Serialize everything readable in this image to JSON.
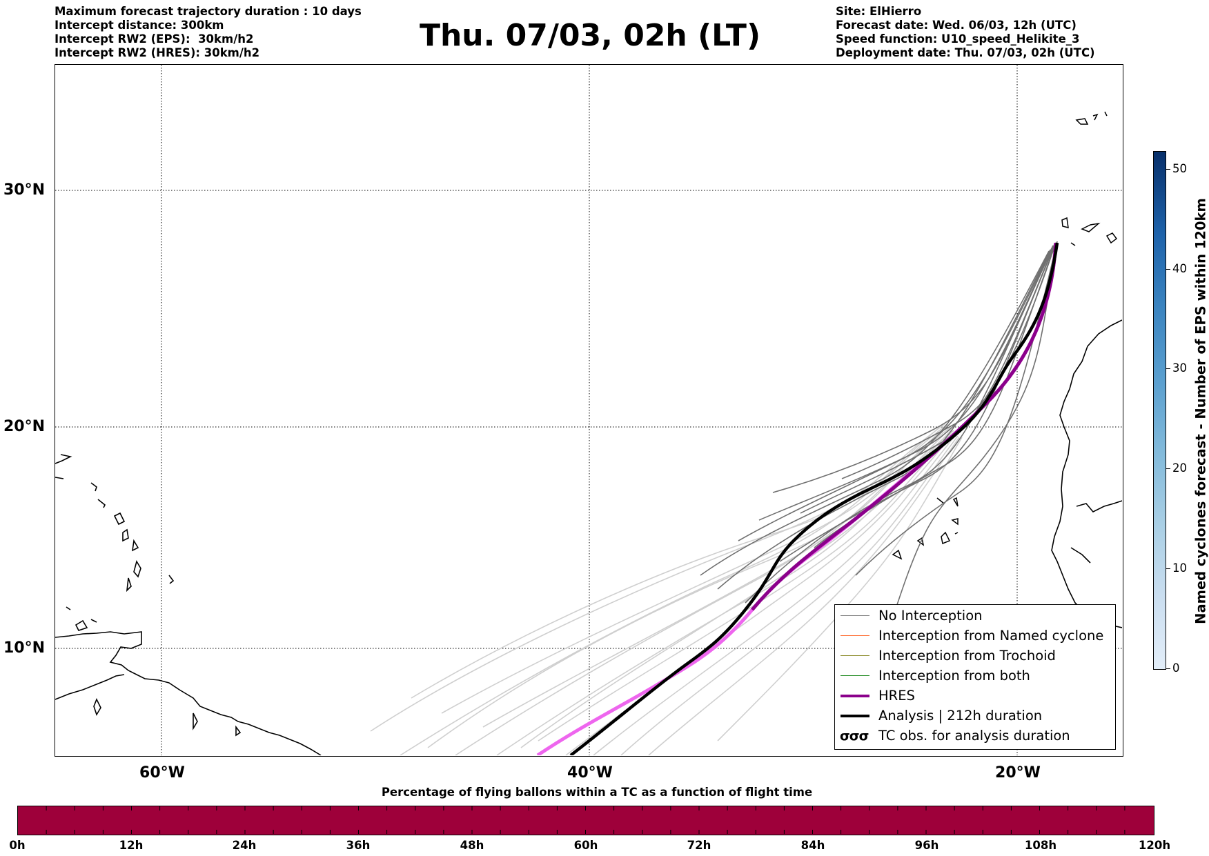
{
  "info_left": [
    "Maximum forecast trajectory duration : 10 days",
    "Intercept distance: 300km",
    "Intercept RW2 (EPS):  30km/h2",
    "Intercept RW2 (HRES): 30km/h2"
  ],
  "title": "Thu. 07/03, 02h (LT)",
  "info_right": [
    "Site: ElHierro",
    "Forecast date: Wed. 06/03, 12h (UTC)",
    "Speed function: U10_speed_Helikite_3",
    "Deployment date: Thu. 07/03, 02h (UTC)"
  ],
  "map": {
    "lat_labels": [
      "30°N",
      "20°N",
      "10°N"
    ],
    "lon_labels": [
      "60°W",
      "40°W",
      "20°W"
    ]
  },
  "legend": {
    "items": [
      {
        "label": "No Interception",
        "color": "#808080"
      },
      {
        "label": "Interception from Named cyclone",
        "color": "#ff6a2e"
      },
      {
        "label": "Interception from Trochoid",
        "color": "#8b8b2a"
      },
      {
        "label": "Interception from both",
        "color": "#228b22"
      },
      {
        "label": "HRES",
        "color": "#8b008b"
      },
      {
        "label": "Analysis | 212h duration",
        "color": "#000000"
      },
      {
        "label": "TC obs. for analysis duration",
        "symbol": "σσσ"
      }
    ]
  },
  "colorbar": {
    "title": "Named cyclones forecast - Number of EPS within 120km",
    "ticks": [
      "0",
      "10",
      "20",
      "30",
      "40",
      "50"
    ]
  },
  "timeline": {
    "title": "Percentage of flying ballons within a TC as a function of flight time",
    "ticks": [
      "0h",
      "12h",
      "24h",
      "36h",
      "48h",
      "60h",
      "72h",
      "84h",
      "96h",
      "108h",
      "120h"
    ],
    "bar_color": "#9e003a"
  }
}
